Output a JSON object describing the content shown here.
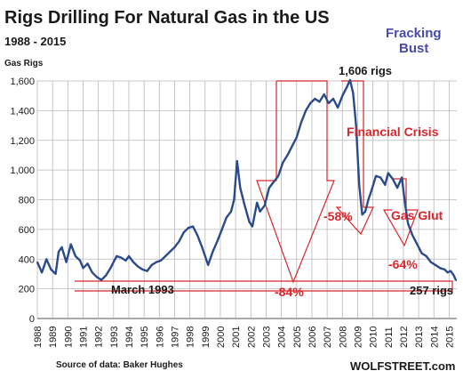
{
  "chart_data": {
    "type": "line",
    "title": "Rigs Drilling For Natural Gas in the US",
    "subtitle": "1988 - 2015",
    "ylabel": "Gas Rigs",
    "ylim": [
      0,
      1600
    ],
    "xlim": [
      1988,
      2015.5
    ],
    "yticks": [
      "0",
      "200",
      "400",
      "600",
      "800",
      "1,000",
      "1,200",
      "1,400",
      "1,600"
    ],
    "xticks": [
      "1988",
      "1989",
      "1990",
      "1991",
      "1992",
      "1993",
      "1994",
      "1995",
      "1996",
      "1997",
      "1998",
      "1999",
      "2000",
      "2001",
      "2002",
      "2003",
      "2004",
      "2005",
      "2006",
      "2007",
      "2008",
      "2009",
      "2010",
      "2011",
      "2012",
      "2013",
      "2014",
      "2015"
    ],
    "grid": true,
    "series": [
      {
        "color": "#2b4a8b",
        "x": [
          1988.0,
          1988.3,
          1988.6,
          1988.9,
          1989.2,
          1989.4,
          1989.6,
          1989.9,
          1990.2,
          1990.5,
          1990.8,
          1991.0,
          1991.3,
          1991.6,
          1991.9,
          1992.2,
          1992.5,
          1992.8,
          1993.0,
          1993.2,
          1993.5,
          1993.8,
          1994.0,
          1994.3,
          1994.6,
          1994.9,
          1995.2,
          1995.5,
          1995.8,
          1996.1,
          1996.4,
          1996.7,
          1997.0,
          1997.3,
          1997.6,
          1997.9,
          1998.2,
          1998.5,
          1998.8,
          1999.0,
          1999.2,
          1999.5,
          1999.8,
          2000.1,
          2000.4,
          2000.7,
          2000.9,
          2001.1,
          2001.3,
          2001.6,
          2001.9,
          2002.1,
          2002.4,
          2002.6,
          2002.9,
          2003.2,
          2003.5,
          2003.8,
          2004.1,
          2004.4,
          2004.7,
          2005.0,
          2005.3,
          2005.6,
          2005.9,
          2006.2,
          2006.5,
          2006.8,
          2007.1,
          2007.4,
          2007.7,
          2008.0,
          2008.3,
          2008.5,
          2008.7,
          2008.9,
          2009.1,
          2009.3,
          2009.5,
          2009.7,
          2009.9,
          2010.2,
          2010.5,
          2010.8,
          2011.0,
          2011.3,
          2011.6,
          2011.9,
          2012.1,
          2012.3,
          2012.6,
          2012.9,
          2013.2,
          2013.5,
          2013.8,
          2014.1,
          2014.4,
          2014.7,
          2014.9,
          2015.1,
          2015.3,
          2015.45
        ],
        "y": [
          380,
          310,
          400,
          330,
          300,
          450,
          480,
          380,
          500,
          420,
          390,
          340,
          370,
          310,
          280,
          260,
          290,
          340,
          380,
          420,
          410,
          390,
          420,
          380,
          350,
          330,
          320,
          360,
          380,
          390,
          420,
          450,
          480,
          520,
          580,
          610,
          620,
          560,
          480,
          420,
          360,
          450,
          520,
          600,
          680,
          720,
          800,
          1060,
          880,
          760,
          650,
          620,
          780,
          720,
          760,
          880,
          920,
          960,
          1050,
          1100,
          1160,
          1220,
          1320,
          1400,
          1450,
          1480,
          1460,
          1510,
          1450,
          1480,
          1420,
          1500,
          1560,
          1606,
          1520,
          1300,
          900,
          700,
          720,
          800,
          860,
          960,
          950,
          900,
          980,
          940,
          880,
          950,
          780,
          640,
          560,
          500,
          440,
          420,
          380,
          360,
          340,
          330,
          310,
          320,
          290,
          257
        ]
      }
    ]
  },
  "annotations": {
    "peak_label": "1,606 rigs",
    "fracking_bust_line1": "Fracking",
    "fracking_bust_line2": "Bust",
    "financial_crisis": "Financial Crisis",
    "pct_58": "-58%",
    "gas_glut": "Gas Glut",
    "pct_64": "-64%",
    "march_1993": "March 1993",
    "pct_84": "-84%",
    "end_label": "257 rigs"
  },
  "footer": {
    "source": "Source of data: Baker Hughes",
    "brand": "WOLFSTREET.com"
  },
  "colors": {
    "line": "#2b4a8b",
    "accent_red": "#d9262c",
    "accent_blue": "#4a4aa8",
    "grid": "#b8b8b8"
  }
}
